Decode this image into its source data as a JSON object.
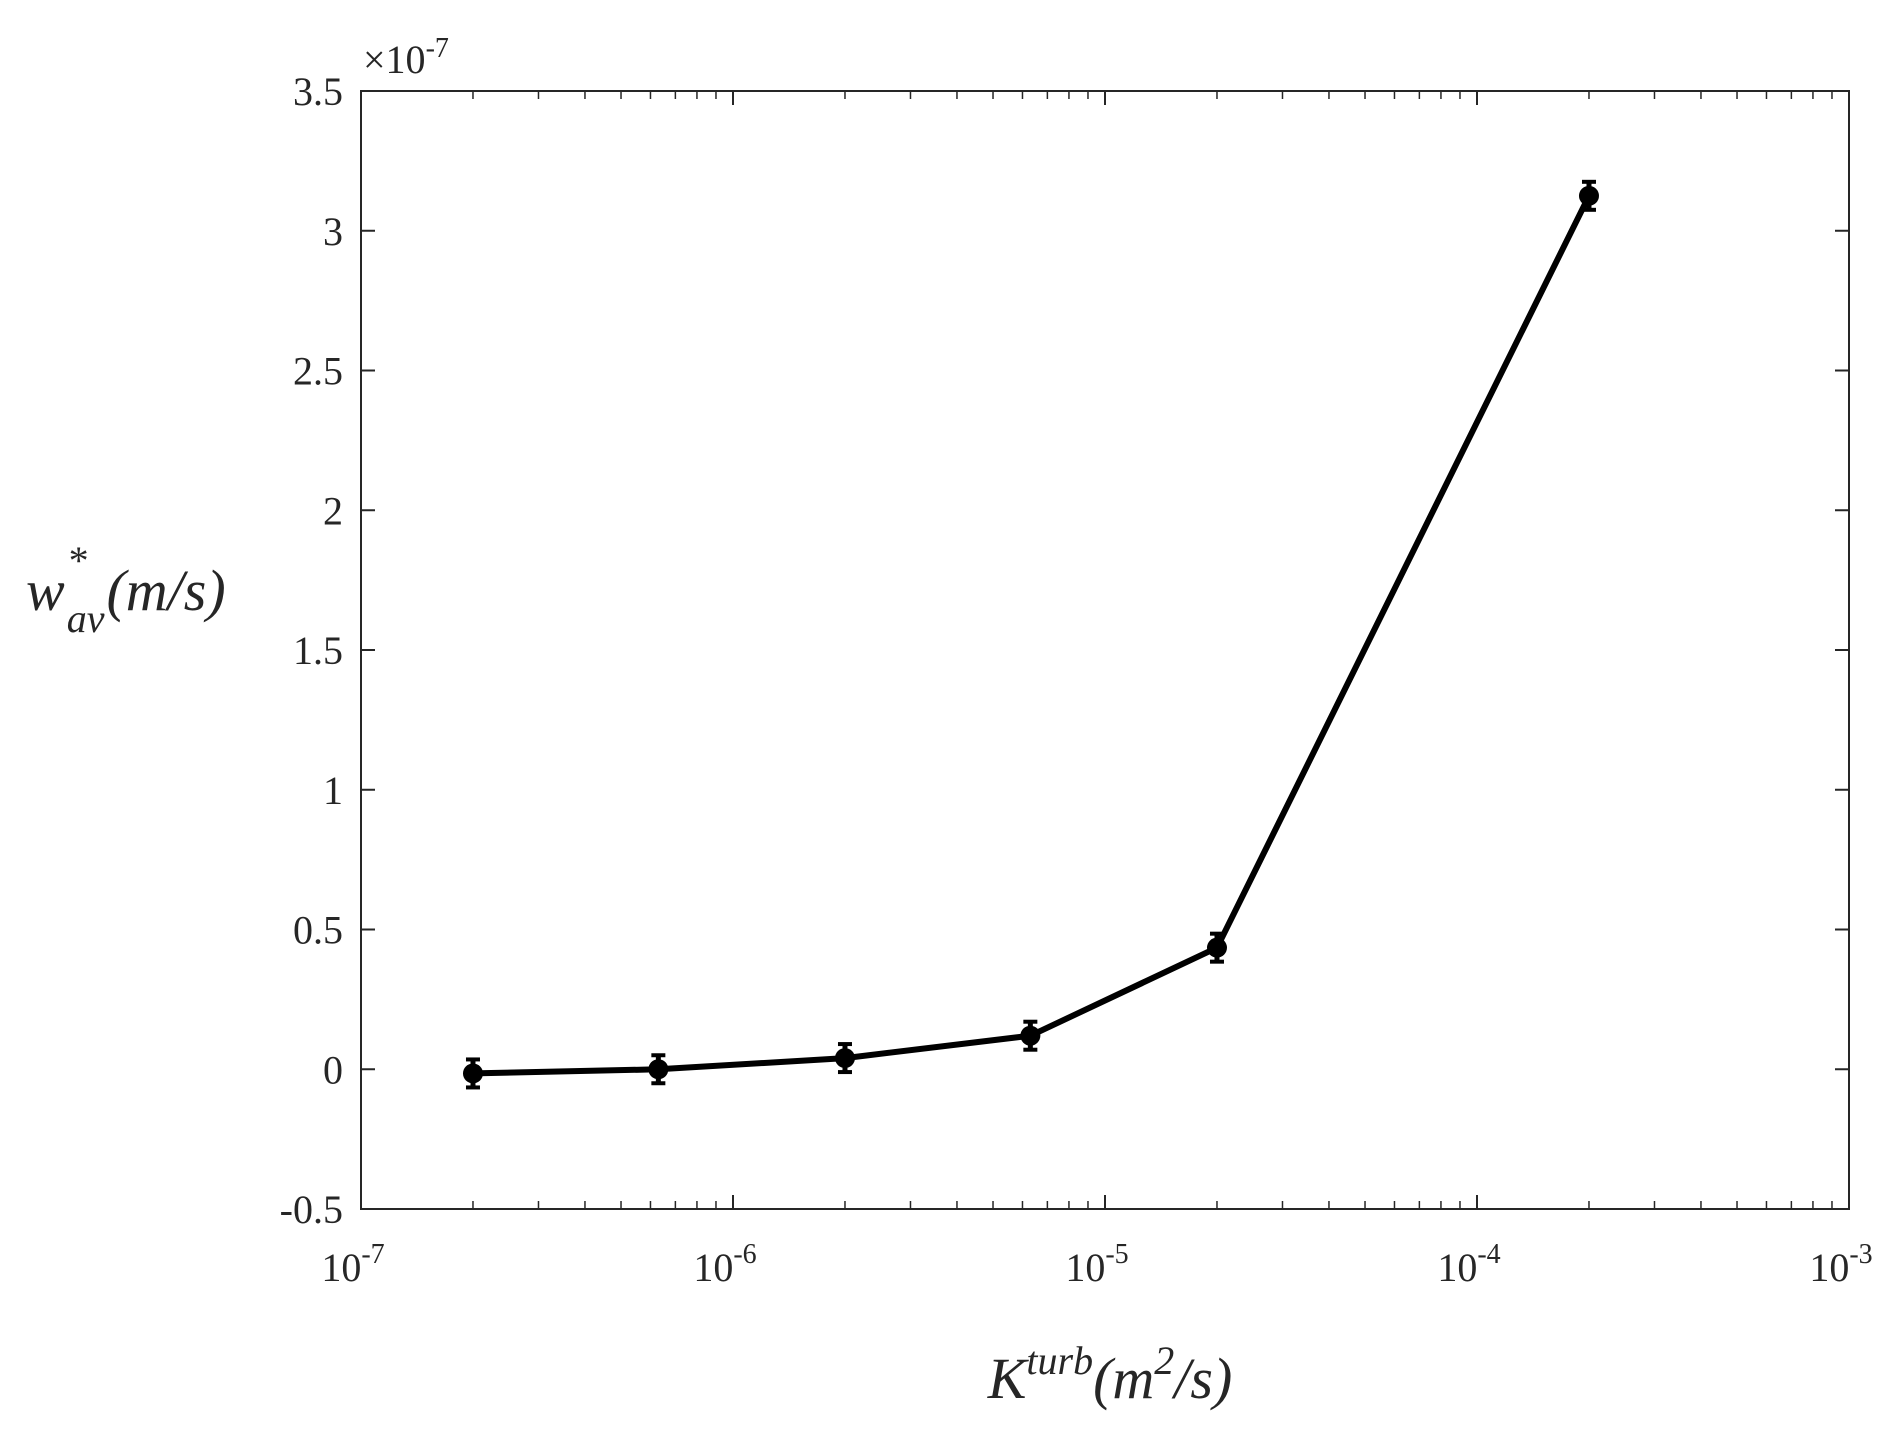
{
  "chart_data": {
    "type": "line",
    "title": "",
    "xlabel": {
      "base": "K",
      "sup": "turb",
      "unit_open": "(m",
      "unit_sup": "2",
      "unit_close": "/s)"
    },
    "ylabel": {
      "base": "w",
      "sup": "*",
      "sub": "av",
      "unit": "(m/s)"
    },
    "x_scale": "log",
    "xlim": [
      1e-07,
      0.001
    ],
    "ylim": [
      -0.5,
      3.5
    ],
    "y_multiplier": {
      "prefix": "×10",
      "power": "-7"
    },
    "x_ticks": [
      {
        "value": 1e-07,
        "base": "10",
        "power": "-7"
      },
      {
        "value": 1e-06,
        "base": "10",
        "power": "-6"
      },
      {
        "value": 1e-05,
        "base": "10",
        "power": "-5"
      },
      {
        "value": 0.0001,
        "base": "10",
        "power": "-4"
      },
      {
        "value": 0.001,
        "base": "10",
        "power": "-3"
      }
    ],
    "y_ticks": [
      {
        "value": -0.5,
        "label": "-0.5"
      },
      {
        "value": 0,
        "label": "0"
      },
      {
        "value": 0.5,
        "label": "0.5"
      },
      {
        "value": 1,
        "label": "1"
      },
      {
        "value": 1.5,
        "label": "1.5"
      },
      {
        "value": 2,
        "label": "2"
      },
      {
        "value": 2.5,
        "label": "2.5"
      },
      {
        "value": 3,
        "label": "3"
      },
      {
        "value": 3.5,
        "label": "3.5"
      }
    ],
    "grid": false,
    "series": [
      {
        "color": "#000000",
        "marker": "filled-circle-with-errorbars",
        "x": [
          2e-07,
          6.3e-07,
          2e-06,
          6.3e-06,
          2e-05,
          0.0002
        ],
        "y": [
          -0.015,
          0.0,
          0.04,
          0.12,
          0.435,
          3.125
        ]
      }
    ]
  }
}
